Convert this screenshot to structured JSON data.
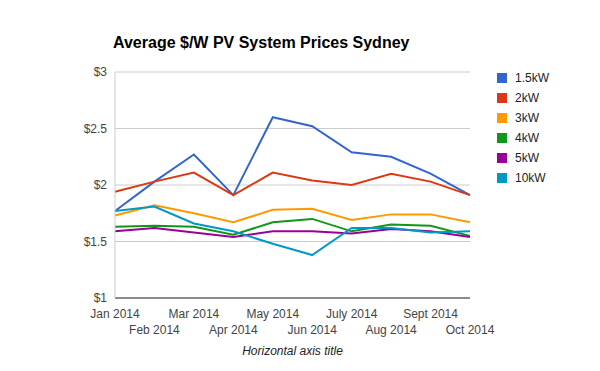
{
  "chart_data": {
    "type": "line",
    "title": "Average $/W PV System Prices Sydney",
    "x_label": "Horizontal axis title",
    "categories": [
      "Jan 2014",
      "Feb 2014",
      "Mar 2014",
      "Apr 2014",
      "May 2014",
      "Jun 2014",
      "July 2014",
      "Aug 2014",
      "Sept 2014",
      "Oct 2014"
    ],
    "series": [
      {
        "name": "1.5kW",
        "color": "#3366cc",
        "values": [
          1.77,
          2.03,
          2.27,
          1.91,
          2.6,
          2.52,
          2.29,
          2.25,
          2.1,
          1.91
        ]
      },
      {
        "name": "2kW",
        "color": "#dc3912",
        "values": [
          1.94,
          2.03,
          2.11,
          1.91,
          2.11,
          2.04,
          2.0,
          2.1,
          2.03,
          1.91
        ]
      },
      {
        "name": "3kW",
        "color": "#ff9900",
        "values": [
          1.73,
          1.82,
          1.75,
          1.67,
          1.78,
          1.79,
          1.69,
          1.74,
          1.74,
          1.67
        ]
      },
      {
        "name": "4kW",
        "color": "#109618",
        "values": [
          1.63,
          1.64,
          1.63,
          1.56,
          1.67,
          1.7,
          1.59,
          1.65,
          1.64,
          1.55
        ]
      },
      {
        "name": "5kW",
        "color": "#990099",
        "values": [
          1.59,
          1.62,
          1.58,
          1.54,
          1.59,
          1.59,
          1.57,
          1.61,
          1.59,
          1.54
        ]
      },
      {
        "name": "10kW",
        "color": "#0099c6",
        "values": [
          1.77,
          1.81,
          1.66,
          1.59,
          1.48,
          1.38,
          1.62,
          1.62,
          1.58,
          1.59
        ]
      }
    ],
    "ylim": [
      1,
      3
    ],
    "yticks": [
      {
        "value": 1,
        "label": "$1"
      },
      {
        "value": 1.5,
        "label": "$1.5"
      },
      {
        "value": 2,
        "label": "$2"
      },
      {
        "value": 2.5,
        "label": "$2.5"
      },
      {
        "value": 3,
        "label": "$3"
      }
    ],
    "grid": true,
    "legend": "right"
  }
}
